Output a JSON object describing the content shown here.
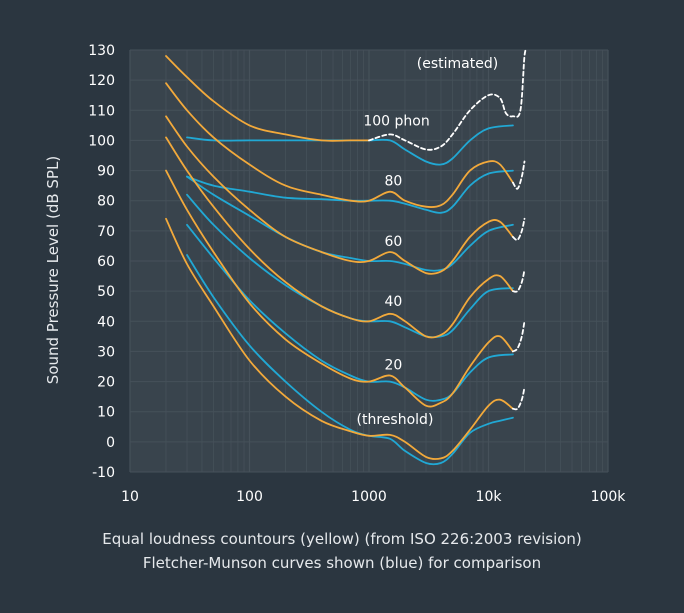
{
  "chart_data": {
    "type": "line",
    "xscale": "log",
    "xlim": [
      10,
      100000
    ],
    "ylim": [
      -10,
      130
    ],
    "grid": true,
    "ylabel": "Sound Pressure Level (dB SPL)",
    "xticks": [
      10,
      100,
      1000,
      10000,
      100000
    ],
    "xtick_labels": [
      "10",
      "100",
      "1000",
      "10k",
      "100k"
    ],
    "yticks": [
      -10,
      0,
      10,
      20,
      30,
      40,
      50,
      60,
      70,
      80,
      90,
      100,
      110,
      120,
      130
    ],
    "annotations": [
      {
        "text": "(estimated)",
        "x": 5500,
        "y": 124
      },
      {
        "text": "100 phon",
        "x": 1700,
        "y": 105
      },
      {
        "text": "80",
        "x": 1600,
        "y": 85
      },
      {
        "text": "60",
        "x": 1600,
        "y": 65
      },
      {
        "text": "40",
        "x": 1600,
        "y": 45
      },
      {
        "text": "20",
        "x": 1600,
        "y": 24
      },
      {
        "text": "(threshold)",
        "x": 1650,
        "y": 6
      }
    ],
    "caption": [
      "Equal loudness countours (yellow) (from ISO 226:2003 revision)",
      "Fletcher-Munson curves shown (blue) for comparison"
    ],
    "colors": {
      "iso": "#f2a93b",
      "fm": "#21a8d4",
      "estimated": "#ffffff",
      "background": "#2b3640",
      "plot": "#39444d",
      "grid": "#46515a"
    },
    "series": [
      {
        "group": "iso",
        "phon": "threshold",
        "points": [
          [
            20,
            74
          ],
          [
            30,
            59
          ],
          [
            50,
            45
          ],
          [
            100,
            27
          ],
          [
            200,
            15
          ],
          [
            400,
            7
          ],
          [
            700,
            3.5
          ],
          [
            1000,
            2
          ],
          [
            1500,
            2.3
          ],
          [
            2000,
            0
          ],
          [
            3000,
            -5
          ],
          [
            4000,
            -5.5
          ],
          [
            5000,
            -3
          ],
          [
            7000,
            4
          ],
          [
            10000,
            12
          ],
          [
            12500,
            14
          ],
          [
            16000,
            11
          ]
        ]
      },
      {
        "group": "iso",
        "phon": "20",
        "points": [
          [
            20,
            90
          ],
          [
            30,
            77
          ],
          [
            50,
            63
          ],
          [
            100,
            46
          ],
          [
            200,
            34
          ],
          [
            400,
            26
          ],
          [
            700,
            21
          ],
          [
            1000,
            20
          ],
          [
            1500,
            22
          ],
          [
            2000,
            18
          ],
          [
            3000,
            12
          ],
          [
            4000,
            13
          ],
          [
            5000,
            16
          ],
          [
            7000,
            25
          ],
          [
            10000,
            33
          ],
          [
            12500,
            35
          ],
          [
            16000,
            30
          ]
        ]
      },
      {
        "group": "iso",
        "phon": "40",
        "points": [
          [
            20,
            101
          ],
          [
            30,
            90
          ],
          [
            50,
            78
          ],
          [
            100,
            64
          ],
          [
            200,
            53
          ],
          [
            400,
            45
          ],
          [
            700,
            41
          ],
          [
            1000,
            40
          ],
          [
            1500,
            42.5
          ],
          [
            2000,
            40
          ],
          [
            3000,
            35
          ],
          [
            4000,
            35.5
          ],
          [
            5000,
            39
          ],
          [
            7000,
            48
          ],
          [
            10000,
            54
          ],
          [
            12500,
            55
          ],
          [
            16000,
            50
          ]
        ]
      },
      {
        "group": "iso",
        "phon": "60",
        "points": [
          [
            20,
            108
          ],
          [
            30,
            98
          ],
          [
            50,
            88
          ],
          [
            100,
            77
          ],
          [
            200,
            68
          ],
          [
            400,
            63
          ],
          [
            700,
            60
          ],
          [
            1000,
            60
          ],
          [
            1500,
            63
          ],
          [
            2000,
            60
          ],
          [
            3000,
            56
          ],
          [
            4000,
            56.5
          ],
          [
            5000,
            60
          ],
          [
            7000,
            68
          ],
          [
            10000,
            73
          ],
          [
            12500,
            73
          ],
          [
            16000,
            68
          ]
        ]
      },
      {
        "group": "iso",
        "phon": "80",
        "points": [
          [
            20,
            119
          ],
          [
            30,
            110
          ],
          [
            50,
            101
          ],
          [
            100,
            92
          ],
          [
            200,
            85
          ],
          [
            400,
            82
          ],
          [
            700,
            80
          ],
          [
            1000,
            80
          ],
          [
            1500,
            83
          ],
          [
            2000,
            80
          ],
          [
            3000,
            78
          ],
          [
            4000,
            78.5
          ],
          [
            5000,
            82
          ],
          [
            7000,
            90
          ],
          [
            10000,
            93
          ],
          [
            12500,
            92
          ],
          [
            16000,
            86
          ]
        ]
      },
      {
        "group": "iso",
        "phon": "100",
        "points": [
          [
            20,
            128
          ],
          [
            30,
            121
          ],
          [
            50,
            113
          ],
          [
            100,
            105
          ],
          [
            200,
            102
          ],
          [
            400,
            100
          ],
          [
            700,
            100
          ],
          [
            1000,
            100
          ]
        ]
      },
      {
        "group": "fm",
        "phon": "threshold",
        "points": [
          [
            30,
            62
          ],
          [
            50,
            48
          ],
          [
            100,
            32
          ],
          [
            200,
            20
          ],
          [
            400,
            10
          ],
          [
            700,
            4
          ],
          [
            1000,
            2
          ],
          [
            1500,
            1
          ],
          [
            2000,
            -3
          ],
          [
            3000,
            -7
          ],
          [
            4000,
            -7
          ],
          [
            5000,
            -4
          ],
          [
            7000,
            3
          ],
          [
            10000,
            6
          ],
          [
            12500,
            7
          ],
          [
            16000,
            8
          ]
        ]
      },
      {
        "group": "fm",
        "phon": "20",
        "points": [
          [
            30,
            72
          ],
          [
            50,
            61
          ],
          [
            100,
            47
          ],
          [
            200,
            36
          ],
          [
            400,
            27
          ],
          [
            700,
            22
          ],
          [
            1000,
            20
          ],
          [
            1500,
            20
          ],
          [
            2000,
            18
          ],
          [
            3000,
            14
          ],
          [
            4000,
            14
          ],
          [
            5000,
            16
          ],
          [
            7000,
            23
          ],
          [
            10000,
            28
          ],
          [
            16000,
            29
          ]
        ]
      },
      {
        "group": "fm",
        "phon": "40",
        "points": [
          [
            30,
            82
          ],
          [
            50,
            72
          ],
          [
            100,
            61
          ],
          [
            200,
            52
          ],
          [
            400,
            45
          ],
          [
            700,
            41
          ],
          [
            1000,
            40
          ],
          [
            1500,
            40
          ],
          [
            2000,
            38
          ],
          [
            3000,
            35
          ],
          [
            4000,
            35
          ],
          [
            5000,
            37
          ],
          [
            7000,
            44
          ],
          [
            10000,
            50
          ],
          [
            16000,
            51
          ]
        ]
      },
      {
        "group": "fm",
        "phon": "60",
        "points": [
          [
            30,
            88
          ],
          [
            50,
            82
          ],
          [
            100,
            75
          ],
          [
            200,
            68
          ],
          [
            400,
            63
          ],
          [
            700,
            61
          ],
          [
            1000,
            60
          ],
          [
            1500,
            60
          ],
          [
            2000,
            59
          ],
          [
            3000,
            57
          ],
          [
            4000,
            57
          ],
          [
            5000,
            59
          ],
          [
            7000,
            65
          ],
          [
            10000,
            70
          ],
          [
            16000,
            72
          ]
        ]
      },
      {
        "group": "fm",
        "phon": "80",
        "points": [
          [
            30,
            88
          ],
          [
            50,
            85
          ],
          [
            100,
            83
          ],
          [
            200,
            81
          ],
          [
            400,
            80.5
          ],
          [
            700,
            80
          ],
          [
            1000,
            80
          ],
          [
            1500,
            80
          ],
          [
            2000,
            79
          ],
          [
            3000,
            77
          ],
          [
            4000,
            76
          ],
          [
            5000,
            78
          ],
          [
            7000,
            85
          ],
          [
            10000,
            89
          ],
          [
            16000,
            90
          ]
        ]
      },
      {
        "group": "fm",
        "phon": "100",
        "points": [
          [
            30,
            101
          ],
          [
            50,
            100
          ],
          [
            100,
            100
          ],
          [
            200,
            100
          ],
          [
            400,
            100
          ],
          [
            700,
            100
          ],
          [
            1000,
            100
          ],
          [
            1500,
            100
          ],
          [
            2000,
            97
          ],
          [
            3000,
            93
          ],
          [
            4000,
            92
          ],
          [
            5000,
            94
          ],
          [
            7000,
            100
          ],
          [
            10000,
            104
          ],
          [
            16000,
            105
          ]
        ]
      },
      {
        "group": "estimated",
        "phon": "100",
        "points": [
          [
            1000,
            100
          ],
          [
            1500,
            102
          ],
          [
            2000,
            100
          ],
          [
            3000,
            97
          ],
          [
            4000,
            98
          ],
          [
            5000,
            102
          ],
          [
            7000,
            110
          ],
          [
            10000,
            115
          ],
          [
            12500,
            114
          ],
          [
            14000,
            109
          ],
          [
            16000,
            108
          ],
          [
            18500,
            110
          ],
          [
            20000,
            128
          ],
          [
            21000,
            130
          ]
        ]
      },
      {
        "group": "estimated",
        "phon": "80",
        "points": [
          [
            16000,
            86
          ],
          [
            17500,
            84
          ],
          [
            19000,
            88
          ],
          [
            20000,
            93
          ]
        ]
      },
      {
        "group": "estimated",
        "phon": "60",
        "points": [
          [
            16000,
            68
          ],
          [
            17500,
            67
          ],
          [
            19000,
            70
          ],
          [
            20000,
            74
          ]
        ]
      },
      {
        "group": "estimated",
        "phon": "40",
        "points": [
          [
            16000,
            50
          ],
          [
            17500,
            50
          ],
          [
            19000,
            53
          ],
          [
            20000,
            57
          ]
        ]
      },
      {
        "group": "estimated",
        "phon": "20",
        "points": [
          [
            16000,
            30
          ],
          [
            17500,
            31
          ],
          [
            19000,
            35
          ],
          [
            20000,
            40
          ]
        ]
      },
      {
        "group": "estimated",
        "phon": "threshold",
        "points": [
          [
            16000,
            11
          ],
          [
            17500,
            11
          ],
          [
            19000,
            14
          ],
          [
            20000,
            18
          ]
        ]
      }
    ]
  }
}
